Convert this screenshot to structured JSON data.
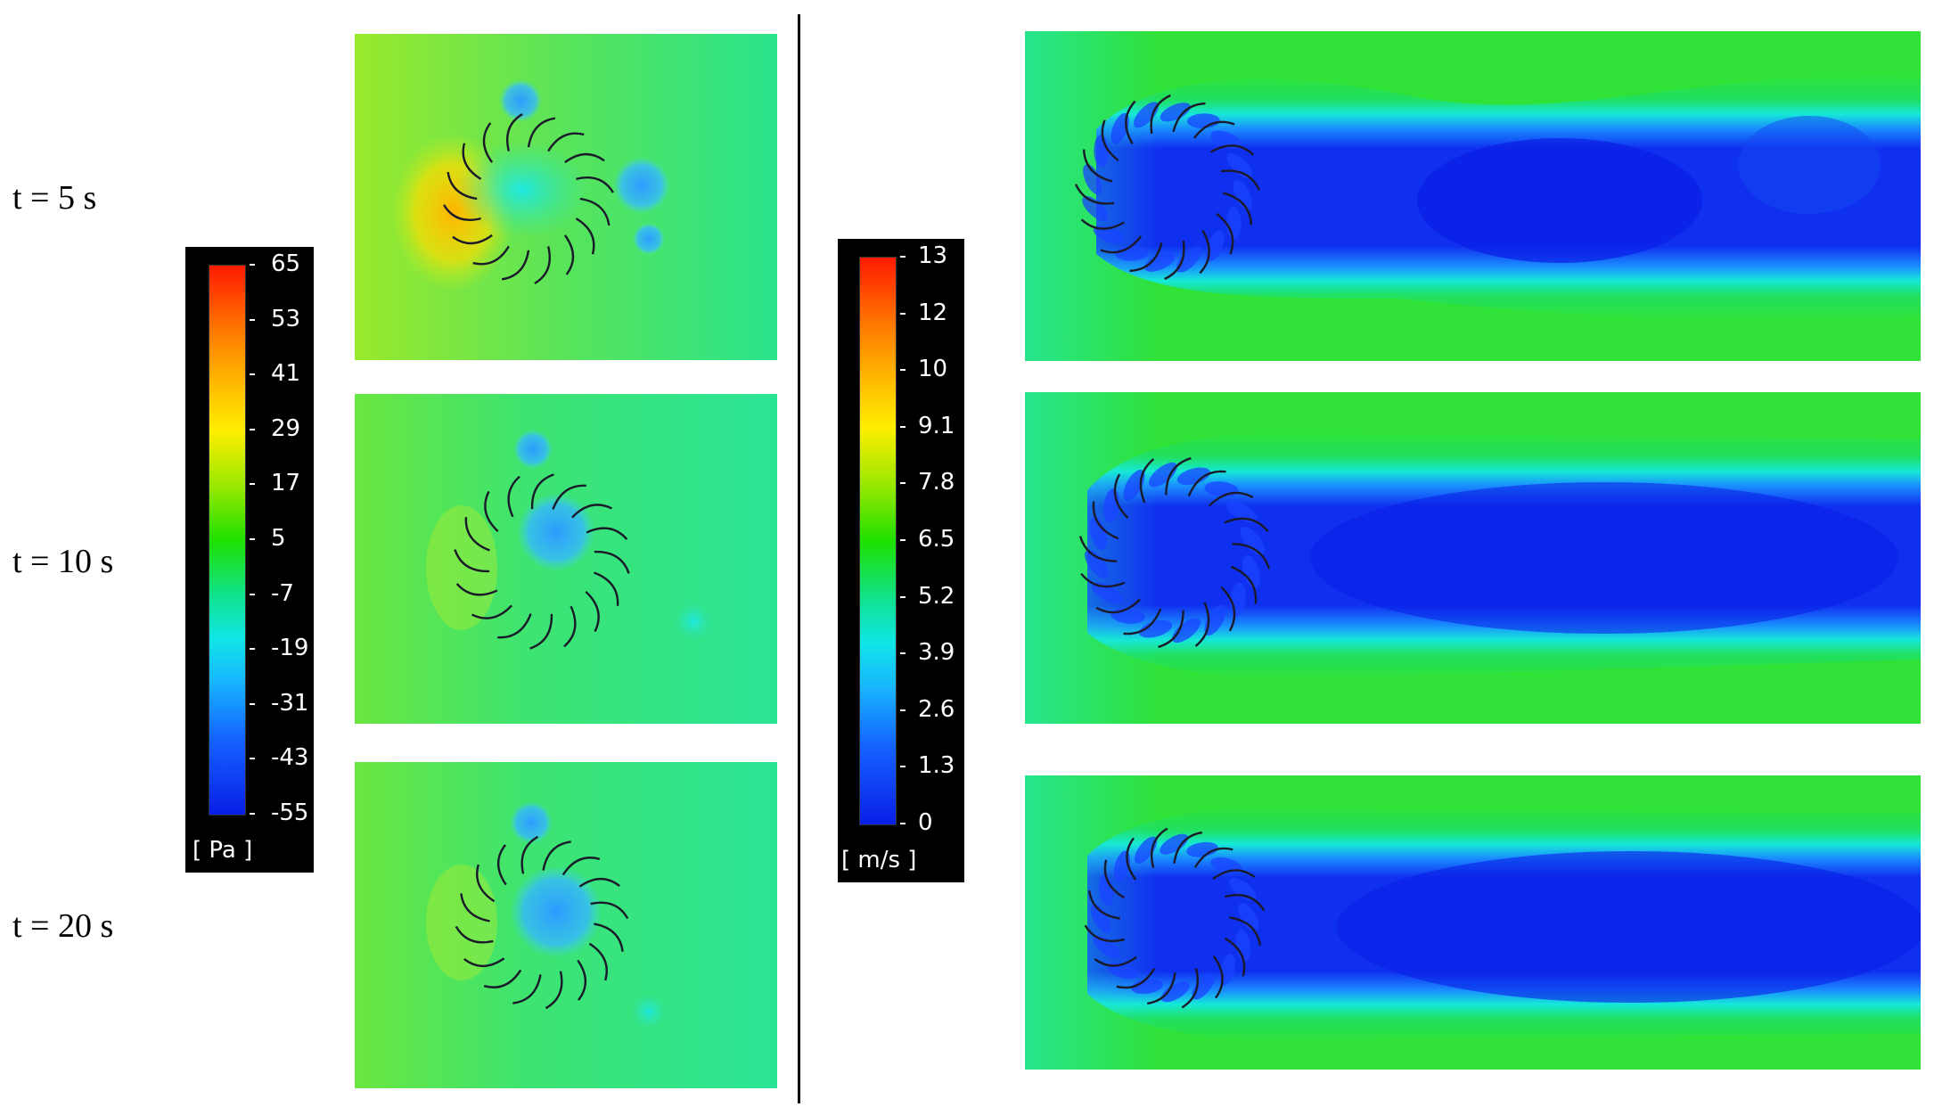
{
  "time_labels": [
    "t = 5 s",
    "t = 10 s",
    "t = 20 s"
  ],
  "pressure_colorbar": {
    "unit": "[ Pa ]",
    "ticks": [
      "65",
      "53",
      "41",
      "29",
      "17",
      "5",
      "-7",
      "-19",
      "-31",
      "-43",
      "-55"
    ]
  },
  "velocity_colorbar": {
    "unit": "[ m/s ]",
    "ticks": [
      "13",
      "12",
      "10",
      "9.1",
      "7.8",
      "6.5",
      "5.2",
      "3.9",
      "2.6",
      "1.3",
      "0"
    ]
  },
  "colors": {
    "background_pressure": "#36e27a",
    "background_velocity": "#2fe14a",
    "low": "#0a1ee6",
    "high": "#ff1a00"
  }
}
